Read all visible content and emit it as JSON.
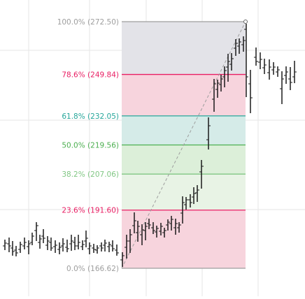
{
  "fib": {
    "levels": [
      {
        "label": "100.0% (272.50)",
        "price": 272.5,
        "color": "#9e9e9e"
      },
      {
        "label": "78.6% (249.84)",
        "price": 249.84,
        "color": "#e91e63"
      },
      {
        "label": "61.8% (232.05)",
        "price": 232.05,
        "color": "#26a69a"
      },
      {
        "label": "50.0% (219.56)",
        "price": 219.56,
        "color": "#4caf50"
      },
      {
        "label": "38.2% (207.06)",
        "price": 207.06,
        "color": "#81c784"
      },
      {
        "label": "23.6% (191.60)",
        "price": 191.6,
        "color": "#e91e63"
      },
      {
        "label": "0.0% (166.62)",
        "price": 166.62,
        "color": "#9e9e9e"
      }
    ],
    "zones": [
      {
        "from": 249.84,
        "to": 272.5,
        "fill": "#e3e3e8"
      },
      {
        "from": 232.05,
        "to": 249.84,
        "fill": "#f7d4dd"
      },
      {
        "from": 219.56,
        "to": 232.05,
        "fill": "#d5ebe8"
      },
      {
        "from": 207.06,
        "to": 219.56,
        "fill": "#dcefd9"
      },
      {
        "from": 191.6,
        "to": 207.06,
        "fill": "#e8f3e5"
      },
      {
        "from": 166.62,
        "to": 191.6,
        "fill": "#f7d4dd"
      }
    ]
  },
  "colors": {
    "bar": "#1a1a1a",
    "grid": "#e6e6e6",
    "trendline": "#9e9e9e"
  }
}
